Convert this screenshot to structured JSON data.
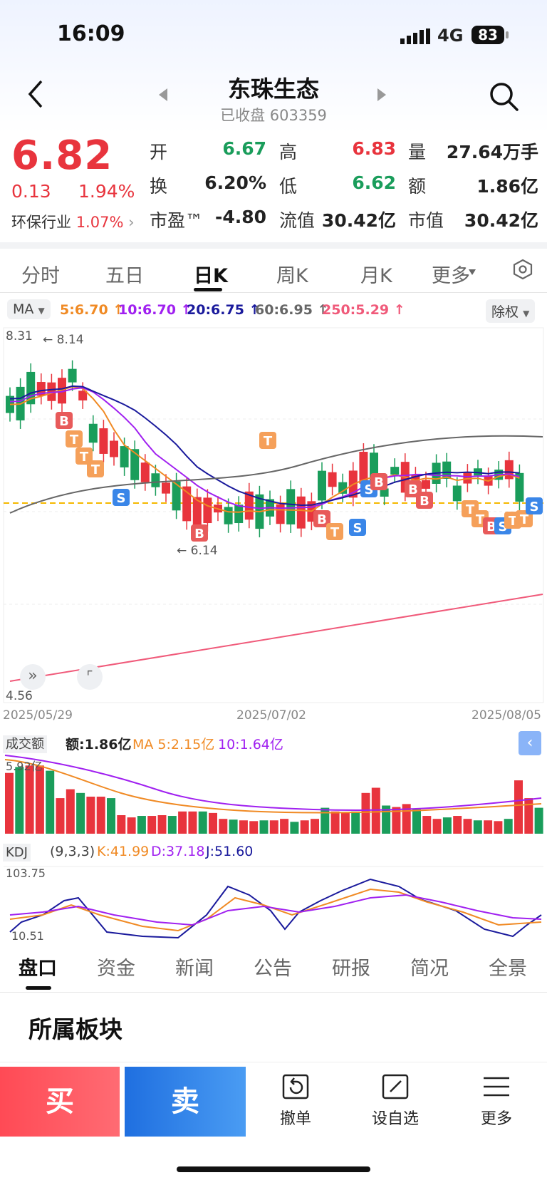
{
  "status": {
    "time": "16:09",
    "network": "4G",
    "battery": "83"
  },
  "header": {
    "title": "东珠生态",
    "subtitle": "已收盘 603359"
  },
  "quote": {
    "price": "6.82",
    "change": "0.13",
    "change_pct": "1.94%",
    "industry_label": "环保行业",
    "industry_pct": "1.07%",
    "rows": [
      [
        {
          "k": "开",
          "v": "6.67",
          "c": "green"
        },
        {
          "k": "高",
          "v": "6.83",
          "c": "red"
        },
        {
          "k": "量",
          "v": "27.64万手",
          "c": "dark"
        }
      ],
      [
        {
          "k": "换",
          "v": "6.20%",
          "c": "dark"
        },
        {
          "k": "低",
          "v": "6.62",
          "c": "green"
        },
        {
          "k": "额",
          "v": "1.86亿",
          "c": "dark"
        }
      ],
      [
        {
          "k": "市盈™",
          "v": "-4.80",
          "c": "dark"
        },
        {
          "k": "流值",
          "v": "30.42亿",
          "c": "dark"
        },
        {
          "k": "市值",
          "v": "30.42亿",
          "c": "dark"
        }
      ]
    ]
  },
  "tabs": [
    "分时",
    "五日",
    "日K",
    "周K",
    "月K",
    "更多"
  ],
  "active_tab": "日K",
  "ma_bar": {
    "selector": "MA",
    "items": [
      {
        "text": "5:6.70 ↑",
        "color": "#f08a24"
      },
      {
        "text": "10:6.70 ↑",
        "color": "#a020f0"
      },
      {
        "text": "20:6.75 ↑",
        "color": "#1a1a9c"
      },
      {
        "text": "60:6.95 ↑",
        "color": "#666666"
      },
      {
        "text": "250:5.29 ↑",
        "color": "#f05a7a"
      }
    ],
    "adjust": "除权"
  },
  "kchart": {
    "y_max_label": "8.31",
    "y_min_label": "4.56",
    "high_marker": "8.14",
    "low_marker": "6.14",
    "dates": [
      "2025/05/29",
      "2025/07/02",
      "2025/08/05"
    ]
  },
  "volume": {
    "selector": "成交额",
    "value": "额:1.86亿",
    "ma5": "MA 5:2.15亿",
    "ma10": "10:1.64亿",
    "top_label": "5.92亿"
  },
  "kdj": {
    "selector": "KDJ",
    "params": "(9,3,3)",
    "k": "K:41.99",
    "d": "D:37.18",
    "j": "J:51.60",
    "top": "103.75",
    "bottom": "10.51"
  },
  "bottom_tabs": [
    "盘口",
    "资金",
    "新闻",
    "公告",
    "研报",
    "简况",
    "全景"
  ],
  "section_title": "所属板块",
  "actions": {
    "buy": "买",
    "sell": "卖",
    "cancel": "撤单",
    "watch": "设自选",
    "more": "更多"
  },
  "colors": {
    "up": "#e8343d",
    "down": "#1a9d5b",
    "accent": "#1f6fe0"
  }
}
